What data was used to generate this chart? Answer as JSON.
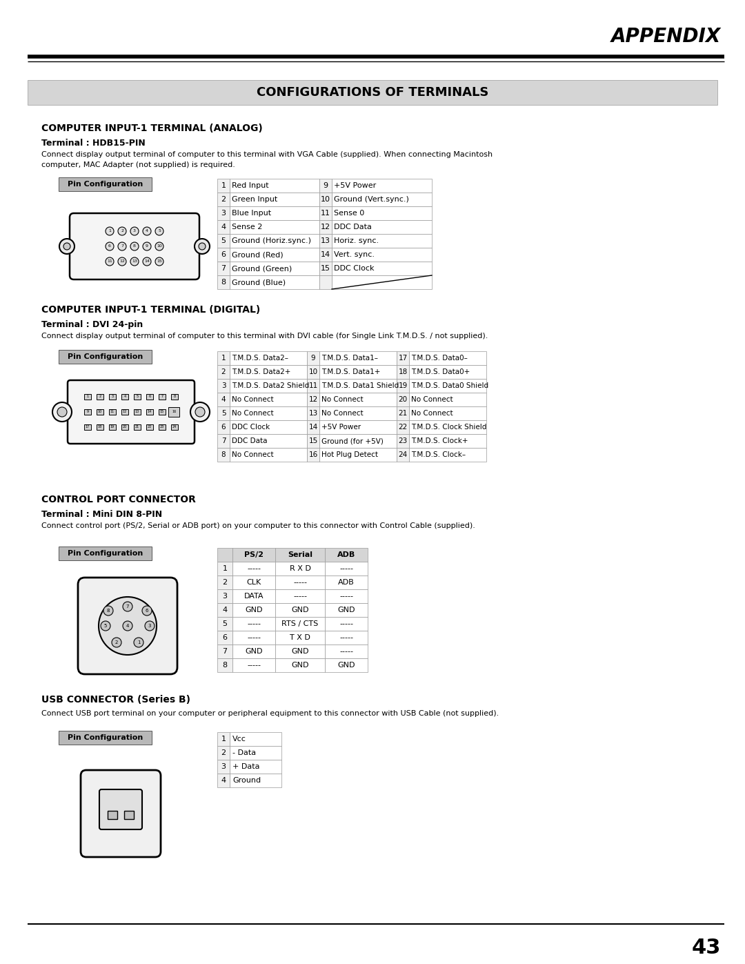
{
  "page_title": "APPENDIX",
  "section_title": "CONFIGURATIONS OF TERMINALS",
  "bg_color": "#ffffff",
  "analog_title": "COMPUTER INPUT-1 TERMINAL (ANALOG)",
  "analog_subtitle": "Terminal : HDB15-PIN",
  "analog_desc1": "Connect display output terminal of computer to this terminal with VGA Cable (supplied). When connecting Macintosh",
  "analog_desc2": "computer, MAC Adapter (not supplied) is required.",
  "analog_pins_left": [
    [
      "1",
      "Red Input"
    ],
    [
      "2",
      "Green Input"
    ],
    [
      "3",
      "Blue Input"
    ],
    [
      "4",
      "Sense 2"
    ],
    [
      "5",
      "Ground (Horiz.sync.)"
    ],
    [
      "6",
      "Ground (Red)"
    ],
    [
      "7",
      "Ground (Green)"
    ],
    [
      "8",
      "Ground (Blue)"
    ]
  ],
  "analog_pins_right": [
    [
      "9",
      "+5V Power"
    ],
    [
      "10",
      "Ground (Vert.sync.)"
    ],
    [
      "11",
      "Sense 0"
    ],
    [
      "12",
      "DDC Data"
    ],
    [
      "13",
      "Horiz. sync."
    ],
    [
      "14",
      "Vert. sync."
    ],
    [
      "15",
      "DDC Clock"
    ],
    [
      "",
      ""
    ]
  ],
  "digital_title": "COMPUTER INPUT-1 TERMINAL (DIGITAL)",
  "digital_subtitle": "Terminal : DVI 24-pin",
  "digital_desc": "Connect display output terminal of computer to this terminal with DVI cable (for Single Link T.M.D.S. / not supplied).",
  "digital_pins_col1": [
    [
      "1",
      "T.M.D.S. Data2–"
    ],
    [
      "2",
      "T.M.D.S. Data2+"
    ],
    [
      "3",
      "T.M.D.S. Data2 Shield"
    ],
    [
      "4",
      "No Connect"
    ],
    [
      "5",
      "No Connect"
    ],
    [
      "6",
      "DDC Clock"
    ],
    [
      "7",
      "DDC Data"
    ],
    [
      "8",
      "No Connect"
    ]
  ],
  "digital_pins_col2": [
    [
      "9",
      "T.M.D.S. Data1–"
    ],
    [
      "10",
      "T.M.D.S. Data1+"
    ],
    [
      "11",
      "T.M.D.S. Data1 Shield"
    ],
    [
      "12",
      "No Connect"
    ],
    [
      "13",
      "No Connect"
    ],
    [
      "14",
      "+5V Power"
    ],
    [
      "15",
      "Ground (for +5V)"
    ],
    [
      "16",
      "Hot Plug Detect"
    ]
  ],
  "digital_pins_col3": [
    [
      "17",
      "T.M.D.S. Data0–"
    ],
    [
      "18",
      "T.M.D.S. Data0+"
    ],
    [
      "19",
      "T.M.D.S. Data0 Shield"
    ],
    [
      "20",
      "No Connect"
    ],
    [
      "21",
      "No Connect"
    ],
    [
      "22",
      "T.M.D.S. Clock Shield"
    ],
    [
      "23",
      "T.M.D.S. Clock+"
    ],
    [
      "24",
      "T.M.D.S. Clock–"
    ]
  ],
  "control_title": "CONTROL PORT CONNECTOR",
  "control_subtitle": "Terminal : Mini DIN 8-PIN",
  "control_desc": "Connect control port (PS/2, Serial or ADB port) on your computer to this connector with Control Cable (supplied).",
  "control_headers": [
    "",
    "PS/2",
    "Serial",
    "ADB"
  ],
  "control_rows": [
    [
      "1",
      "-----",
      "R X D",
      "-----"
    ],
    [
      "2",
      "CLK",
      "-----",
      "ADB"
    ],
    [
      "3",
      "DATA",
      "-----",
      "-----"
    ],
    [
      "4",
      "GND",
      "GND",
      "GND"
    ],
    [
      "5",
      "-----",
      "RTS / CTS",
      "-----"
    ],
    [
      "6",
      "-----",
      "T X D",
      "-----"
    ],
    [
      "7",
      "GND",
      "GND",
      "-----"
    ],
    [
      "8",
      "-----",
      "GND",
      "GND"
    ]
  ],
  "usb_title": "USB CONNECTOR (Series B)",
  "usb_desc": "Connect USB port terminal on your computer or peripheral equipment to this connector with USB Cable (not supplied).",
  "usb_pins": [
    [
      "1",
      "Vcc"
    ],
    [
      "2",
      "- Data"
    ],
    [
      "3",
      "+ Data"
    ],
    [
      "4",
      "Ground"
    ]
  ],
  "page_number": "43"
}
